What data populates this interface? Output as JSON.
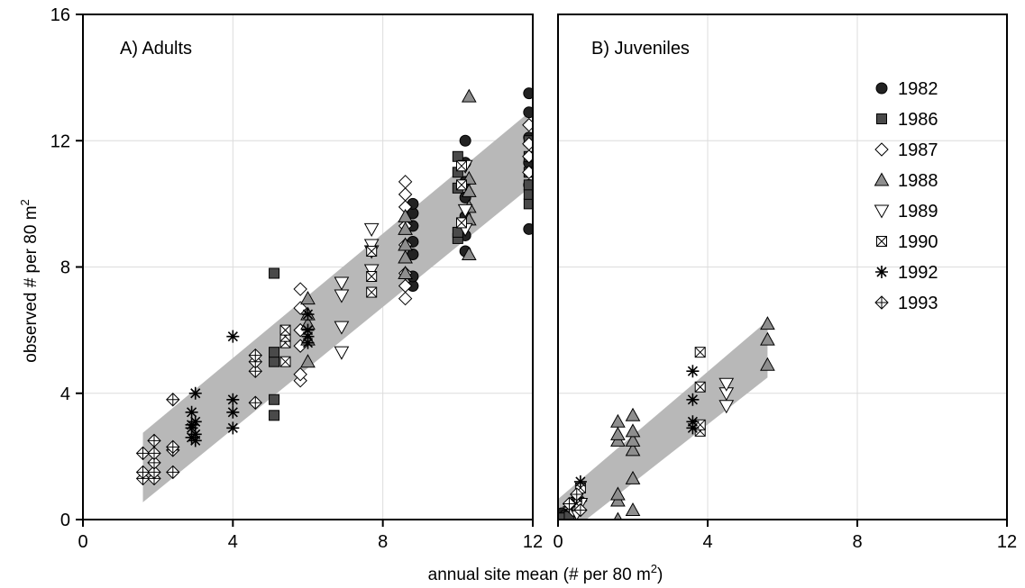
{
  "chart_data": [
    {
      "type": "scatter",
      "panel_label": "A) Adults",
      "xlim": [
        0,
        12
      ],
      "ylim": [
        0,
        16
      ],
      "x_ticks": [
        0,
        4,
        8,
        12
      ],
      "y_ticks": [
        0,
        4,
        8,
        12,
        16
      ],
      "ylabel": "observed # per 80 m",
      "ylabel_sup": "2",
      "grid": true,
      "confidence_band": {
        "x": [
          1.6,
          11.9
        ],
        "lower": [
          0.55,
          10.5
        ],
        "upper": [
          2.75,
          12.9
        ]
      },
      "series": [
        {
          "name": "1982",
          "marker": "circle",
          "points": [
            [
              8.8,
              7.4
            ],
            [
              8.8,
              7.7
            ],
            [
              8.8,
              8.4
            ],
            [
              8.8,
              8.8
            ],
            [
              8.8,
              9.3
            ],
            [
              8.8,
              9.7
            ],
            [
              8.8,
              10.0
            ],
            [
              10.2,
              8.5
            ],
            [
              10.2,
              9.0
            ],
            [
              10.2,
              9.6
            ],
            [
              10.2,
              10.2
            ],
            [
              10.2,
              10.7
            ],
            [
              10.2,
              11.3
            ],
            [
              10.2,
              12.0
            ],
            [
              11.9,
              9.2
            ],
            [
              11.9,
              10.6
            ],
            [
              11.9,
              11.3
            ],
            [
              11.9,
              12.1
            ],
            [
              11.9,
              12.9
            ],
            [
              11.9,
              13.5
            ]
          ]
        },
        {
          "name": "1986",
          "marker": "square",
          "points": [
            [
              5.1,
              3.3
            ],
            [
              5.1,
              3.8
            ],
            [
              5.1,
              5.0
            ],
            [
              5.1,
              5.3
            ],
            [
              5.1,
              7.8
            ],
            [
              10.0,
              8.9
            ],
            [
              10.0,
              9.1
            ],
            [
              10.0,
              10.5
            ],
            [
              10.0,
              11.0
            ],
            [
              10.0,
              11.5
            ],
            [
              11.9,
              10.0
            ],
            [
              11.9,
              10.3
            ],
            [
              11.9,
              10.6
            ],
            [
              11.9,
              11.0
            ],
            [
              11.9,
              11.5
            ],
            [
              11.9,
              12.0
            ]
          ]
        },
        {
          "name": "1987",
          "marker": "diamond",
          "points": [
            [
              5.8,
              4.4
            ],
            [
              5.8,
              4.6
            ],
            [
              5.8,
              5.5
            ],
            [
              5.8,
              6.0
            ],
            [
              5.8,
              6.7
            ],
            [
              5.8,
              7.3
            ],
            [
              8.6,
              7.0
            ],
            [
              8.6,
              7.4
            ],
            [
              8.6,
              7.8
            ],
            [
              8.6,
              8.7
            ],
            [
              8.6,
              9.3
            ],
            [
              8.6,
              9.9
            ],
            [
              8.6,
              10.3
            ],
            [
              8.6,
              10.7
            ],
            [
              11.9,
              11.0
            ],
            [
              11.9,
              11.5
            ],
            [
              11.9,
              11.9
            ],
            [
              11.9,
              12.5
            ]
          ]
        },
        {
          "name": "1988",
          "marker": "triangle-up",
          "points": [
            [
              6.0,
              5.0
            ],
            [
              6.0,
              5.7
            ],
            [
              6.0,
              6.2
            ],
            [
              6.0,
              6.5
            ],
            [
              6.0,
              7.0
            ],
            [
              8.6,
              7.8
            ],
            [
              8.6,
              8.3
            ],
            [
              8.6,
              8.7
            ],
            [
              8.6,
              9.2
            ],
            [
              8.6,
              9.6
            ],
            [
              10.3,
              8.4
            ],
            [
              10.3,
              9.5
            ],
            [
              10.3,
              9.9
            ],
            [
              10.3,
              10.4
            ],
            [
              10.3,
              10.8
            ],
            [
              10.3,
              13.4
            ]
          ]
        },
        {
          "name": "1989",
          "marker": "triangle-down",
          "points": [
            [
              6.9,
              5.3
            ],
            [
              6.9,
              6.1
            ],
            [
              6.9,
              7.1
            ],
            [
              6.9,
              7.5
            ],
            [
              7.7,
              7.9
            ],
            [
              7.7,
              8.5
            ],
            [
              7.7,
              8.7
            ],
            [
              7.7,
              9.2
            ],
            [
              10.2,
              9.2
            ],
            [
              10.2,
              9.8
            ],
            [
              10.2,
              11.2
            ]
          ]
        },
        {
          "name": "1990",
          "marker": "square-x",
          "points": [
            [
              5.4,
              5.0
            ],
            [
              5.4,
              5.6
            ],
            [
              5.4,
              5.8
            ],
            [
              5.4,
              6.0
            ],
            [
              7.7,
              7.2
            ],
            [
              7.7,
              7.7
            ],
            [
              7.7,
              8.5
            ],
            [
              10.1,
              9.4
            ],
            [
              10.1,
              10.6
            ],
            [
              10.1,
              11.2
            ]
          ]
        },
        {
          "name": "1992",
          "marker": "asterisk",
          "points": [
            [
              2.9,
              2.6
            ],
            [
              2.9,
              2.9
            ],
            [
              2.9,
              3.0
            ],
            [
              2.9,
              3.4
            ],
            [
              3.0,
              2.5
            ],
            [
              3.0,
              2.7
            ],
            [
              3.0,
              3.1
            ],
            [
              3.0,
              4.0
            ],
            [
              4.0,
              2.9
            ],
            [
              4.0,
              3.4
            ],
            [
              4.0,
              3.8
            ],
            [
              4.0,
              5.8
            ],
            [
              6.0,
              5.6
            ],
            [
              6.0,
              5.8
            ],
            [
              6.0,
              6.0
            ],
            [
              6.0,
              6.5
            ]
          ]
        },
        {
          "name": "1993",
          "marker": "diamond-plus",
          "points": [
            [
              1.6,
              1.3
            ],
            [
              1.6,
              1.5
            ],
            [
              1.6,
              2.1
            ],
            [
              1.9,
              1.3
            ],
            [
              1.9,
              1.5
            ],
            [
              1.9,
              1.8
            ],
            [
              1.9,
              2.1
            ],
            [
              1.9,
              2.5
            ],
            [
              2.4,
              1.5
            ],
            [
              2.4,
              2.2
            ],
            [
              2.4,
              2.3
            ],
            [
              2.4,
              3.8
            ],
            [
              4.6,
              3.7
            ],
            [
              4.6,
              4.7
            ],
            [
              4.6,
              5.0
            ],
            [
              4.6,
              5.2
            ]
          ]
        }
      ]
    },
    {
      "type": "scatter",
      "panel_label": "B) Juveniles",
      "xlim": [
        0,
        12
      ],
      "ylim": [
        0,
        16
      ],
      "x_ticks": [
        0,
        4,
        8,
        12
      ],
      "grid": true,
      "confidence_band": {
        "x": [
          0.0,
          5.6
        ],
        "lower": [
          -0.7,
          4.5
        ],
        "upper": [
          0.65,
          6.3
        ]
      },
      "series": [
        {
          "name": "1982",
          "marker": "circle",
          "points": [
            [
              0.1,
              0.1
            ],
            [
              0.1,
              0.2
            ],
            [
              0.2,
              0.15
            ]
          ]
        },
        {
          "name": "1986",
          "marker": "square",
          "points": [
            [
              0.1,
              0.05
            ],
            [
              0.3,
              0.1
            ]
          ]
        },
        {
          "name": "1987",
          "marker": "diamond",
          "points": [
            [
              0.4,
              0.3
            ],
            [
              0.6,
              0.6
            ]
          ]
        },
        {
          "name": "1988",
          "marker": "triangle-up",
          "points": [
            [
              1.6,
              0.0
            ],
            [
              1.6,
              0.6
            ],
            [
              1.6,
              0.8
            ],
            [
              1.6,
              2.5
            ],
            [
              1.6,
              2.7
            ],
            [
              1.6,
              3.1
            ],
            [
              2.0,
              0.3
            ],
            [
              2.0,
              1.3
            ],
            [
              2.0,
              2.2
            ],
            [
              2.0,
              2.5
            ],
            [
              2.0,
              2.8
            ],
            [
              2.0,
              3.3
            ],
            [
              5.6,
              4.9
            ],
            [
              5.6,
              5.7
            ],
            [
              5.6,
              6.2
            ]
          ]
        },
        {
          "name": "1989",
          "marker": "triangle-down",
          "points": [
            [
              0.5,
              0.2
            ],
            [
              0.6,
              0.5
            ],
            [
              4.5,
              3.6
            ],
            [
              4.5,
              4.0
            ],
            [
              4.5,
              4.3
            ]
          ]
        },
        {
          "name": "1990",
          "marker": "square-x",
          "points": [
            [
              0.5,
              0.5
            ],
            [
              0.6,
              1.0
            ],
            [
              3.8,
              2.8
            ],
            [
              3.8,
              3.0
            ],
            [
              3.8,
              4.2
            ],
            [
              3.8,
              5.3
            ]
          ]
        },
        {
          "name": "1992",
          "marker": "asterisk",
          "points": [
            [
              0.3,
              0.4
            ],
            [
              0.5,
              0.7
            ],
            [
              0.6,
              1.2
            ],
            [
              3.6,
              2.9
            ],
            [
              3.6,
              3.1
            ],
            [
              3.6,
              3.8
            ],
            [
              3.6,
              4.7
            ]
          ]
        },
        {
          "name": "1993",
          "marker": "diamond-plus",
          "points": [
            [
              0.3,
              0.5
            ],
            [
              0.5,
              0.8
            ],
            [
              0.6,
              0.3
            ]
          ]
        }
      ]
    }
  ],
  "shared_xlabel": "annual site mean  (# per 80 m",
  "shared_xlabel_sup": "2",
  "shared_xlabel_close": ")",
  "legend": {
    "placement": "inside-right of panel B",
    "entries": [
      {
        "name": "1982",
        "marker": "circle"
      },
      {
        "name": "1986",
        "marker": "square"
      },
      {
        "name": "1987",
        "marker": "diamond"
      },
      {
        "name": "1988",
        "marker": "triangle-up"
      },
      {
        "name": "1989",
        "marker": "triangle-down"
      },
      {
        "name": "1990",
        "marker": "square-x"
      },
      {
        "name": "1992",
        "marker": "asterisk"
      },
      {
        "name": "1993",
        "marker": "diamond-plus"
      }
    ]
  },
  "colors": {
    "band": "#b8b8b8",
    "grid": "#dcdcdc",
    "dark_fill": "#222222",
    "square_fill": "#4a4a4a",
    "grey_fill": "#8e8e8e",
    "open_fill": "#ffffff",
    "stroke": "#000000"
  }
}
